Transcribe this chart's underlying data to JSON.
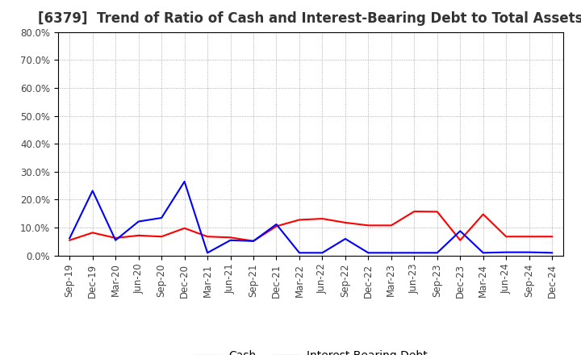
{
  "title": "[6379]  Trend of Ratio of Cash and Interest-Bearing Debt to Total Assets",
  "x_labels": [
    "Sep-19",
    "Dec-19",
    "Mar-20",
    "Jun-20",
    "Sep-20",
    "Dec-20",
    "Mar-21",
    "Jun-21",
    "Sep-21",
    "Dec-21",
    "Mar-22",
    "Jun-22",
    "Sep-22",
    "Dec-22",
    "Mar-23",
    "Jun-23",
    "Sep-23",
    "Dec-23",
    "Mar-24",
    "Jun-24",
    "Sep-24",
    "Dec-24"
  ],
  "cash": [
    0.055,
    0.082,
    0.063,
    0.072,
    0.068,
    0.098,
    0.068,
    0.065,
    0.052,
    0.105,
    0.128,
    0.132,
    0.118,
    0.108,
    0.108,
    0.158,
    0.157,
    0.055,
    0.148,
    0.068,
    0.068,
    0.068
  ],
  "ibd": [
    0.062,
    0.232,
    0.055,
    0.122,
    0.135,
    0.265,
    0.01,
    0.055,
    0.052,
    0.112,
    0.01,
    0.01,
    0.06,
    0.01,
    0.01,
    0.01,
    0.01,
    0.088,
    0.01,
    0.012,
    0.012,
    0.01
  ],
  "cash_color": "#ff0000",
  "ibd_color": "#0000ff",
  "ylim": [
    0.0,
    0.8
  ],
  "yticks": [
    0.0,
    0.1,
    0.2,
    0.3,
    0.4,
    0.5,
    0.6,
    0.7,
    0.8
  ],
  "ytick_labels": [
    "0.0%",
    "10.0%",
    "20.0%",
    "30.0%",
    "40.0%",
    "50.0%",
    "60.0%",
    "70.0%",
    "80.0%"
  ],
  "bg_color": "#ffffff",
  "grid_color": "#999999",
  "legend_cash": "Cash",
  "legend_ibd": "Interest-Bearing Debt",
  "title_fontsize": 12,
  "tick_fontsize": 8.5
}
